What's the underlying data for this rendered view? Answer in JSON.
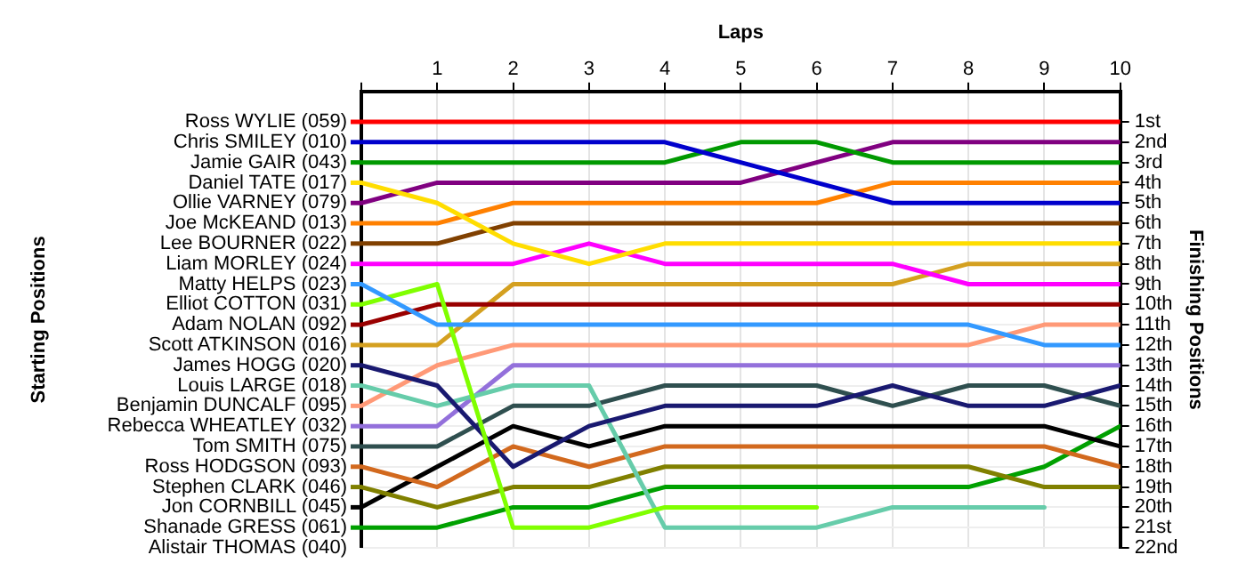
{
  "chart_data": {
    "type": "line",
    "xlabel": "Laps",
    "ylabel": "Finishing Positions",
    "x": [
      0,
      1,
      2,
      3,
      4,
      5,
      6,
      7,
      8,
      9,
      10
    ],
    "xlim": [
      0,
      10
    ],
    "xticks": [
      {
        "value": 0,
        "label": null
      },
      1,
      2,
      3,
      4,
      5,
      6,
      7,
      8,
      9,
      10
    ],
    "ylim": [
      22,
      -0.5
    ],
    "yticks": [
      {
        "value": 1,
        "label": "1st"
      },
      {
        "value": 2,
        "label": "2nd"
      },
      {
        "value": 3,
        "label": "3rd"
      },
      {
        "value": 4,
        "label": "4th"
      },
      {
        "value": 5,
        "label": "5th"
      },
      {
        "value": 6,
        "label": "6th"
      },
      {
        "value": 7,
        "label": "7th"
      },
      {
        "value": 8,
        "label": "8th"
      },
      {
        "value": 9,
        "label": "9th"
      },
      {
        "value": 10,
        "label": "10th"
      },
      {
        "value": 11,
        "label": "11th"
      },
      {
        "value": 12,
        "label": "12th"
      },
      {
        "value": 13,
        "label": "13th"
      },
      {
        "value": 14,
        "label": "14th"
      },
      {
        "value": 15,
        "label": "15th"
      },
      {
        "value": 16,
        "label": "16th"
      },
      {
        "value": 17,
        "label": "17th"
      },
      {
        "value": 18,
        "label": "18th"
      },
      {
        "value": 19,
        "label": "19th"
      },
      {
        "value": 20,
        "label": "20th"
      },
      {
        "value": 21,
        "label": "21st"
      },
      {
        "value": 22,
        "label": "22nd"
      }
    ],
    "annotations": [
      "Starting Positions",
      "Alistair THOMAS (040)"
    ],
    "grid": true,
    "legend": "left",
    "marker": "none",
    "line_style": "solid",
    "series": [
      {
        "name": "Ross WYLIE (059)",
        "color": "#ff0000",
        "values": [
          1,
          1,
          1,
          1,
          1,
          1,
          1,
          1,
          1,
          1,
          1
        ]
      },
      {
        "name": "Chris SMILEY (010)",
        "color": "#0000cc",
        "values": [
          2,
          2,
          2,
          2,
          2,
          3,
          4,
          5,
          5,
          5,
          5
        ]
      },
      {
        "name": "Jamie GAIR (043)",
        "color": "#009900",
        "values": [
          3,
          3,
          3,
          3,
          3,
          2,
          2,
          3,
          3,
          3,
          3
        ]
      },
      {
        "name": "Daniel TATE (017)",
        "color": "#ffdd00",
        "values": [
          4,
          5,
          7,
          8,
          7,
          7,
          7,
          7,
          7,
          7,
          7
        ]
      },
      {
        "name": "Ollie VARNEY (079)",
        "color": "#800080",
        "values": [
          5,
          4,
          4,
          4,
          4,
          4,
          3,
          2,
          2,
          2,
          2
        ]
      },
      {
        "name": "Joe McKEAND (013)",
        "color": "#ff8000",
        "values": [
          6,
          6,
          5,
          5,
          5,
          5,
          5,
          4,
          4,
          4,
          4
        ]
      },
      {
        "name": "Lee BOURNER (022)",
        "color": "#804000",
        "values": [
          7,
          7,
          6,
          6,
          6,
          6,
          6,
          6,
          6,
          6,
          6
        ]
      },
      {
        "name": "Liam MORLEY (024)",
        "color": "#ff00ff",
        "values": [
          8,
          8,
          8,
          7,
          8,
          8,
          8,
          8,
          9,
          9,
          9
        ]
      },
      {
        "name": "Matty HELPS (023)",
        "color": "#3399ff",
        "values": [
          9,
          11,
          11,
          11,
          11,
          11,
          11,
          11,
          11,
          12,
          12
        ]
      },
      {
        "name": "Elliot COTTON (031)",
        "color": "#80ff00",
        "values": [
          10,
          9,
          21,
          21,
          20,
          20,
          20,
          null,
          null,
          null,
          null
        ]
      },
      {
        "name": "Adam NOLAN (092)",
        "color": "#990000",
        "values": [
          11,
          10,
          10,
          10,
          10,
          10,
          10,
          10,
          10,
          10,
          10
        ]
      },
      {
        "name": "Scott ATKINSON (016)",
        "color": "#d4a020",
        "values": [
          12,
          12,
          9,
          9,
          9,
          9,
          9,
          9,
          8,
          8,
          8
        ]
      },
      {
        "name": "James HOGG (020)",
        "color": "#191970",
        "values": [
          13,
          14,
          18,
          16,
          15,
          15,
          15,
          14,
          15,
          15,
          14
        ]
      },
      {
        "name": "Louis LARGE (018)",
        "color": "#66ccaa",
        "values": [
          14,
          15,
          14,
          14,
          21,
          21,
          21,
          20,
          20,
          20,
          null
        ]
      },
      {
        "name": "Benjamin DUNCALF (095)",
        "color": "#ff9977",
        "values": [
          15,
          13,
          12,
          12,
          12,
          12,
          12,
          12,
          12,
          11,
          11
        ]
      },
      {
        "name": "Rebecca WHEATLEY (032)",
        "color": "#9370db",
        "values": [
          16,
          16,
          13,
          13,
          13,
          13,
          13,
          13,
          13,
          13,
          13
        ]
      },
      {
        "name": "Tom SMITH (075)",
        "color": "#2f4f4f",
        "values": [
          17,
          17,
          15,
          15,
          14,
          14,
          14,
          15,
          14,
          14,
          15
        ]
      },
      {
        "name": "Ross HODGSON (093)",
        "color": "#d2691e",
        "values": [
          18,
          19,
          17,
          18,
          17,
          17,
          17,
          17,
          17,
          17,
          18
        ]
      },
      {
        "name": "Stephen CLARK (046)",
        "color": "#808000",
        "values": [
          19,
          20,
          19,
          19,
          18,
          18,
          18,
          18,
          18,
          19,
          19
        ]
      },
      {
        "name": "Jon CORNBILL (045)",
        "color": "#000000",
        "values": [
          20,
          18,
          16,
          17,
          16,
          16,
          16,
          16,
          16,
          16,
          17
        ]
      },
      {
        "name": "Shanade GRESS (061)",
        "color": "#00a000",
        "values": [
          21,
          21,
          20,
          20,
          19,
          19,
          19,
          19,
          19,
          18,
          16
        ]
      }
    ]
  }
}
